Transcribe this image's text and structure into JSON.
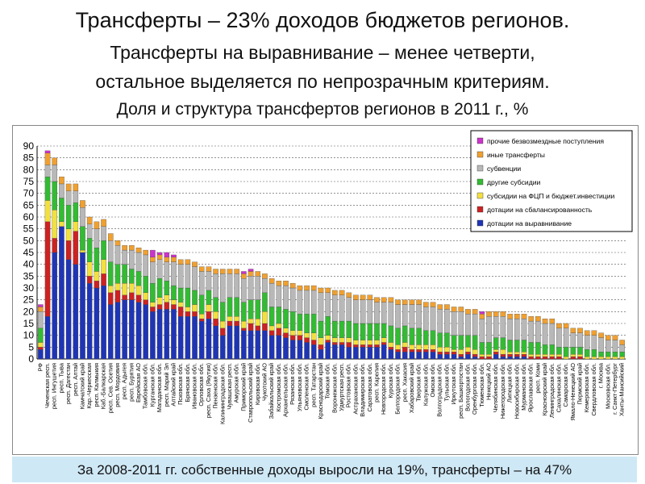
{
  "title_lines": [
    "Трансферты – 23% доходов бюджетов регионов.",
    "Трансферты на выравнивание – менее четверти,",
    "остальное выделяется по непрозрачным критериям.",
    "Доля и структура трансфертов регионов в 2011 г., %"
  ],
  "footer": "За 2008-2011 гг. собственные доходы выросли на 19%, трансферты – на 47%",
  "chart_data": {
    "type": "bar",
    "stacked": true,
    "title": "",
    "xlabel": "",
    "ylabel": "",
    "ylim": [
      0,
      90
    ],
    "yticks": [
      0,
      5,
      10,
      15,
      20,
      25,
      30,
      35,
      40,
      45,
      50,
      55,
      60,
      65,
      70,
      75,
      80,
      85,
      90
    ],
    "grid": true,
    "legend_position": "top-right",
    "categories": [
      "РФ",
      "Чеченская респ.",
      "респ. Ингушетия",
      "респ. Тыва",
      "респ. Дагестан",
      "респ. Алтай",
      "Камчатский край",
      "Кар.-Черкесская",
      "респ. Калмыкия",
      "Каб.-Балкарская",
      "респ. Сев. Осетия",
      "респ. Мордовия",
      "респ. Адыгея",
      "респ. Бурятия",
      "Еврейская АО",
      "Тамбовская обл.",
      "Курганская обл.",
      "Магаданская обл.",
      "респ. Марий Эл",
      "Алтайский край",
      "Псковская обл.",
      "Брянская обл.",
      "Ивановская обл.",
      "Орловская обл.",
      "респ. Саха (Якутия)",
      "Пензенская обл.",
      "Калининградская обл.",
      "Чувашская респ.",
      "Амурская обл.",
      "Приморский край",
      "Ставропольский край",
      "Кировская обл.",
      "Чукотский АО",
      "Забайкальский край",
      "Костромская обл.",
      "Архангельская обл.",
      "Рязанская обл.",
      "Ульяновская обл.",
      "Смоленская обл.",
      "респ. Татарстан",
      "Краснодарский край",
      "Томская обл.",
      "Воронежская обл.",
      "Удмуртская респ.",
      "Ростовская обл.",
      "Астраханская обл.",
      "Владимирская обл.",
      "Саратовская обл.",
      "респ. Карелия",
      "Новгородская обл.",
      "Курская обл.",
      "Белгородская обл.",
      "респ. Хакасия",
      "Хабаровский край",
      "Тверская обл.",
      "Калужская обл.",
      "Омская обл.",
      "Волгоградская обл.",
      "Тульская обл.",
      "Иркутская обл.",
      "респ. Башкортостан",
      "Вологодская обл.",
      "Оренбургская обл.",
      "Тюменская обл.",
      "Ненецкий АО",
      "Челябинская обл.",
      "Нижегородская обл.",
      "Липецкая обл.",
      "Новосибирская обл.",
      "Мурманская обл.",
      "Ярославская обл.",
      "респ. Коми",
      "Красноярский край",
      "Ленинградская обл.",
      "Сахалинская обл.",
      "Самарская обл.",
      "Ямало-Ненецкий АО",
      "Пермский край",
      "Кемеровская обл.",
      "Свердловская обл.",
      "г. Москва",
      "Московская обл.",
      "г. Санкт-Петербург",
      "Ханты-Мансийский"
    ],
    "totals": [
      23,
      88,
      85,
      77,
      74,
      74,
      67,
      60,
      58,
      59,
      53,
      50,
      48,
      48,
      47,
      46,
      46,
      45,
      45,
      44,
      42,
      42,
      41,
      39,
      39,
      38,
      38,
      38,
      38,
      37,
      38,
      37,
      36,
      34,
      33,
      33,
      32,
      31,
      31,
      31,
      30,
      30,
      29,
      29,
      28,
      27,
      27,
      27,
      26,
      26,
      26,
      25,
      25,
      25,
      25,
      24,
      24,
      23,
      23,
      22,
      22,
      21,
      21,
      20,
      20,
      20,
      20,
      19,
      19,
      19,
      18,
      18,
      17,
      16,
      15,
      15,
      13,
      13,
      12,
      12,
      11,
      10,
      9,
      9
    ],
    "series": [
      {
        "name": "прочие безвозмездные поступления",
        "color": "#cc33cc",
        "values": [
          1,
          1,
          0,
          0,
          0,
          0,
          0,
          0,
          0,
          0,
          0,
          0,
          0,
          0,
          0,
          0,
          3,
          1,
          2,
          1,
          0,
          0,
          0,
          0,
          0,
          0,
          0,
          0,
          0,
          1,
          1,
          0,
          0,
          0,
          0,
          0,
          0,
          0,
          0,
          0,
          0,
          0,
          0,
          0,
          0,
          0,
          0,
          0,
          0,
          0,
          0,
          0,
          0,
          0,
          0,
          0,
          0,
          0,
          0,
          0,
          0,
          0,
          0,
          1,
          0,
          0,
          0,
          0,
          0,
          0,
          0,
          0,
          0,
          0,
          0,
          0,
          0,
          0,
          0,
          0,
          0,
          0,
          0,
          0
        ]
      },
      {
        "name": "иные трансферты",
        "color": "#f0a030",
        "values": [
          2,
          5,
          3,
          3,
          3,
          3,
          3,
          3,
          3,
          3,
          3,
          2,
          2,
          2,
          2,
          2,
          2,
          2,
          2,
          2,
          2,
          2,
          2,
          2,
          2,
          2,
          2,
          2,
          2,
          2,
          2,
          2,
          2,
          2,
          2,
          2,
          2,
          2,
          2,
          2,
          2,
          2,
          2,
          2,
          2,
          2,
          2,
          2,
          2,
          2,
          2,
          2,
          2,
          2,
          2,
          2,
          2,
          2,
          2,
          2,
          2,
          2,
          2,
          2,
          2,
          2,
          2,
          2,
          2,
          2,
          2,
          2,
          2,
          2,
          2,
          2,
          2,
          2,
          2,
          2,
          2,
          2,
          2,
          2
        ]
      },
      {
        "name": "субвенции",
        "color": "#b8b8b8",
        "values": [
          7,
          5,
          7,
          6,
          6,
          5,
          8,
          6,
          8,
          6,
          9,
          8,
          6,
          8,
          8,
          9,
          9,
          8,
          8,
          10,
          10,
          10,
          10,
          10,
          8,
          10,
          12,
          10,
          10,
          10,
          10,
          10,
          6,
          10,
          9,
          10,
          10,
          10,
          10,
          10,
          12,
          10,
          11,
          11,
          10,
          10,
          10,
          10,
          9,
          9,
          10,
          10,
          9,
          10,
          10,
          10,
          10,
          10,
          10,
          10,
          10,
          9,
          9,
          10,
          11,
          9,
          9,
          9,
          9,
          9,
          9,
          9,
          9,
          9,
          8,
          8,
          6,
          6,
          6,
          6,
          6,
          5,
          5,
          3
        ]
      },
      {
        "name": "другие субсидии",
        "color": "#33bb33",
        "values": [
          6,
          10,
          12,
          10,
          10,
          8,
          10,
          10,
          10,
          8,
          10,
          8,
          8,
          6,
          6,
          7,
          8,
          8,
          6,
          6,
          6,
          8,
          6,
          8,
          6,
          6,
          8,
          8,
          8,
          8,
          8,
          8,
          8,
          8,
          7,
          8,
          8,
          7,
          8,
          8,
          7,
          8,
          7,
          7,
          7,
          7,
          7,
          7,
          7,
          6,
          7,
          7,
          7,
          7,
          7,
          6,
          6,
          6,
          6,
          6,
          6,
          5,
          6,
          5,
          5,
          5,
          5,
          5,
          5,
          5,
          5,
          5,
          4,
          4,
          3,
          4,
          3,
          3,
          3,
          3,
          2,
          2,
          2,
          2
        ]
      },
      {
        "name": "субсидии на ФЦП и бюджет.инвестиции",
        "color": "#f2e040",
        "values": [
          2,
          9,
          12,
          2,
          5,
          4,
          1,
          6,
          4,
          6,
          3,
          3,
          5,
          4,
          4,
          3,
          2,
          3,
          3,
          2,
          2,
          2,
          3,
          2,
          3,
          3,
          3,
          2,
          2,
          3,
          2,
          3,
          5,
          2,
          2,
          2,
          2,
          2,
          2,
          3,
          3,
          2,
          2,
          2,
          2,
          2,
          2,
          2,
          2,
          2,
          2,
          2,
          2,
          2,
          2,
          2,
          2,
          2,
          2,
          1,
          2,
          2,
          2,
          1,
          1,
          1,
          2,
          1,
          1,
          1,
          1,
          1,
          1,
          1,
          1,
          1,
          1,
          1,
          1,
          1,
          1,
          1,
          1,
          1
        ]
      },
      {
        "name": "дотации на сбалансированность",
        "color": "#cc2222",
        "values": [
          1,
          40,
          6,
          0,
          8,
          14,
          0,
          3,
          3,
          5,
          5,
          5,
          2,
          3,
          3,
          2,
          2,
          2,
          3,
          2,
          4,
          2,
          2,
          1,
          3,
          3,
          3,
          2,
          2,
          1,
          3,
          2,
          3,
          2,
          3,
          2,
          2,
          2,
          2,
          2,
          2,
          1,
          1,
          1,
          2,
          1,
          1,
          1,
          1,
          1,
          1,
          1,
          2,
          1,
          1,
          1,
          1,
          1,
          1,
          1,
          1,
          1,
          1,
          1,
          1,
          1,
          1,
          1,
          1,
          1,
          1,
          1,
          1,
          1,
          1,
          0,
          1,
          1,
          0,
          0,
          0,
          0,
          0,
          0
        ]
      },
      {
        "name": "дотации на выравнивание",
        "color": "#1f35b5",
        "values": [
          4,
          18,
          45,
          56,
          42,
          40,
          45,
          32,
          30,
          31,
          23,
          24,
          25,
          25,
          24,
          23,
          20,
          21,
          21,
          21,
          18,
          18,
          18,
          16,
          17,
          14,
          10,
          14,
          14,
          12,
          12,
          12,
          12,
          10,
          10,
          9,
          8,
          8,
          7,
          6,
          4,
          7,
          6,
          6,
          5,
          5,
          5,
          5,
          5,
          6,
          4,
          3,
          3,
          3,
          3,
          3,
          3,
          2,
          2,
          2,
          1,
          2,
          1,
          0,
          0,
          2,
          1,
          1,
          1,
          1,
          0,
          0,
          0,
          0,
          0,
          0,
          0,
          0,
          0,
          0,
          0,
          0,
          0,
          0
        ]
      }
    ]
  }
}
